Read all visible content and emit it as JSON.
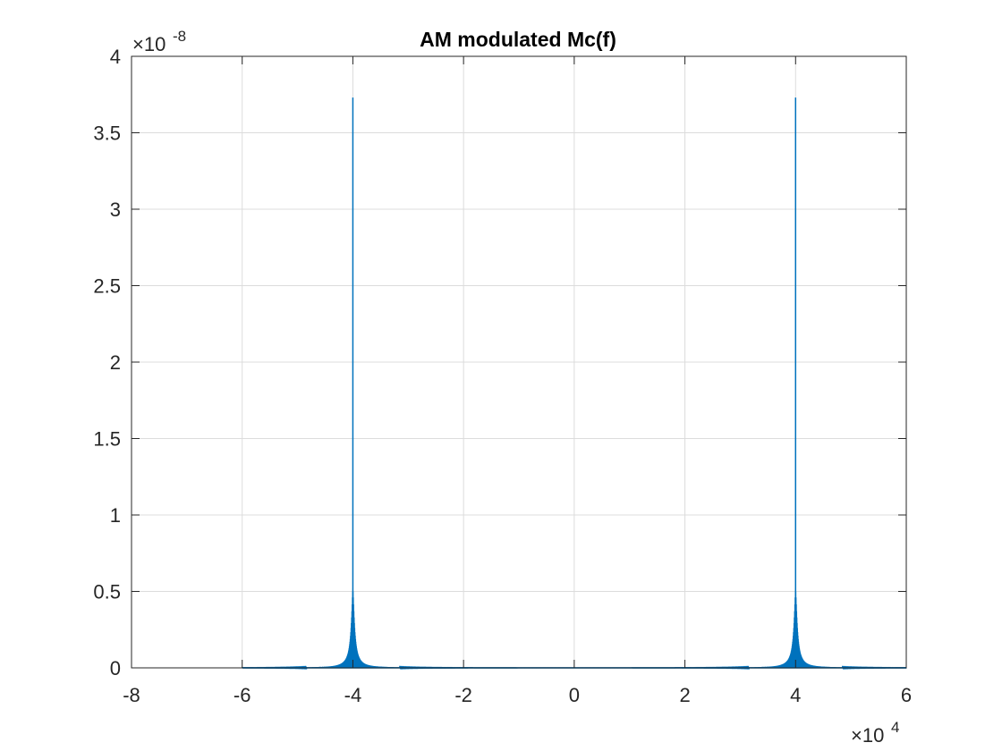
{
  "chart_data": {
    "type": "line",
    "title": "AM modulated Mc(f)",
    "xlabel": "",
    "ylabel": "",
    "x_multiplier": "×10",
    "x_multiplier_exp": "4",
    "y_multiplier": "×10",
    "y_multiplier_exp": "-8",
    "xlim": [
      -80000,
      60000
    ],
    "ylim": [
      0,
      4e-08
    ],
    "xticks": [
      -80000,
      -60000,
      -40000,
      -20000,
      0,
      20000,
      40000,
      60000
    ],
    "xtick_labels": [
      "-8",
      "-6",
      "-4",
      "-2",
      "0",
      "2",
      "4",
      "6"
    ],
    "yticks": [
      0,
      5e-09,
      1e-08,
      1.5e-08,
      2e-08,
      2.5e-08,
      3e-08,
      3.5e-08,
      4e-08
    ],
    "ytick_labels": [
      "0",
      "0.5",
      "1",
      "1.5",
      "2",
      "2.5",
      "3",
      "3.5",
      "4"
    ],
    "grid": true,
    "color": "#0072BD",
    "series": [
      {
        "peaks": [
          {
            "x": -40000,
            "y": 3.73e-08
          },
          {
            "x": 40000,
            "y": 3.73e-08
          }
        ],
        "x_range": [
          -60000,
          60000
        ]
      }
    ]
  }
}
